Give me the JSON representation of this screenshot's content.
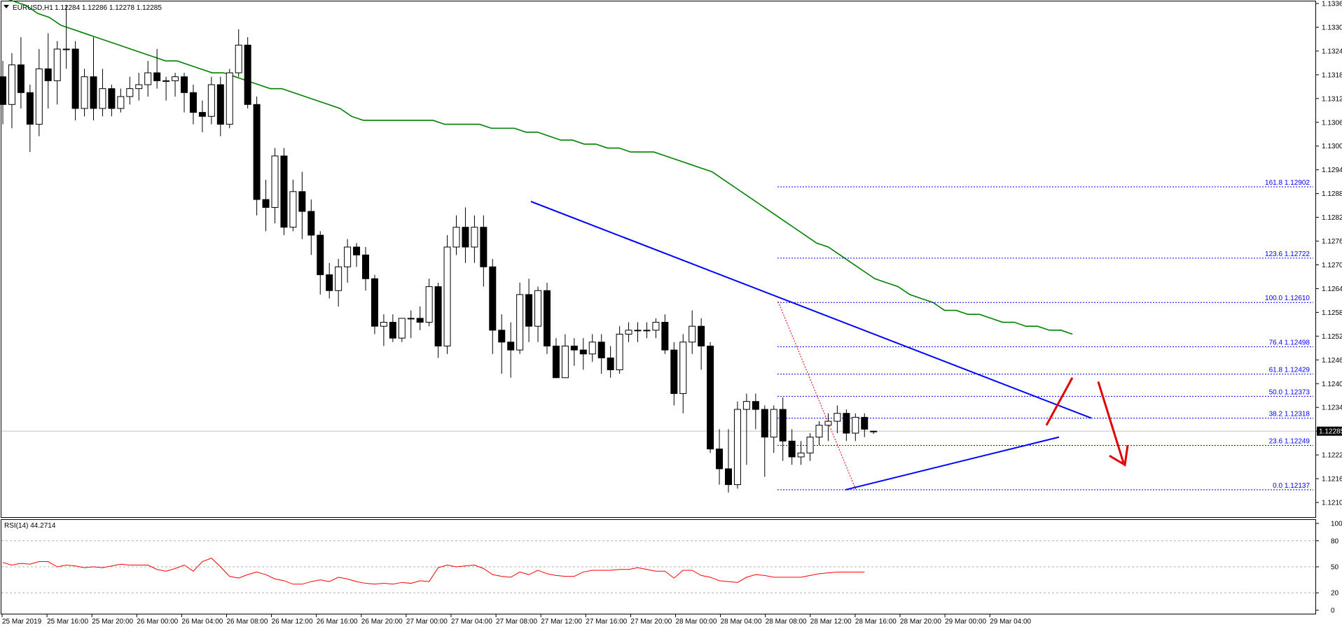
{
  "header": {
    "symbol": "EURUSD,H1",
    "ohlc": "1.12284 1.12286 1.12278 1.12285"
  },
  "rsi_header": "RSI(14) 44.2714",
  "current_price_label": "1.12285",
  "colors": {
    "ma": "#008000",
    "trendline": "#0000ff",
    "fib": "#0000ff",
    "rsi": "#ff0000",
    "arrows": "#e00000",
    "price_line": "#c0c0c0"
  },
  "chart_data": {
    "type": "candlestick",
    "title": "",
    "price_axis": {
      "ylim": [
        1.12075,
        1.13365
      ],
      "ticks": [
        "1.13365",
        "1.13305",
        "1.13245",
        "1.13185",
        "1.13125",
        "1.13065",
        "1.13005",
        "1.12945",
        "1.12885",
        "1.12825",
        "1.12765",
        "1.12705",
        "1.12645",
        "1.12585",
        "1.12525",
        "1.12465",
        "1.12405",
        "1.12345",
        "1.12285",
        "1.12225",
        "1.12165",
        "1.12105"
      ]
    },
    "time_axis": {
      "ticks": [
        "25 Mar 2019",
        "25 Mar 16:00",
        "25 Mar 20:00",
        "26 Mar 00:00",
        "26 Mar 04:00",
        "26 Mar 08:00",
        "26 Mar 12:00",
        "26 Mar 16:00",
        "26 Mar 20:00",
        "27 Mar 00:00",
        "27 Mar 04:00",
        "27 Mar 08:00",
        "27 Mar 12:00",
        "27 Mar 16:00",
        "27 Mar 20:00",
        "28 Mar 00:00",
        "28 Mar 04:00",
        "28 Mar 08:00",
        "28 Mar 12:00",
        "28 Mar 16:00",
        "28 Mar 20:00",
        "29 Mar 00:00",
        "29 Mar 04:00"
      ]
    },
    "candles": [
      [
        1.1318,
        1.1322,
        1.1306,
        1.1311
      ],
      [
        1.1311,
        1.1324,
        1.1305,
        1.1321
      ],
      [
        1.1321,
        1.1328,
        1.131,
        1.1314
      ],
      [
        1.1314,
        1.1316,
        1.1299,
        1.1306
      ],
      [
        1.1306,
        1.1325,
        1.1303,
        1.132
      ],
      [
        1.132,
        1.1329,
        1.131,
        1.1317
      ],
      [
        1.1317,
        1.1327,
        1.1311,
        1.1325
      ],
      [
        1.1325,
        1.1336,
        1.132,
        1.1325
      ],
      [
        1.1325,
        1.1327,
        1.1307,
        1.131
      ],
      [
        1.131,
        1.132,
        1.1308,
        1.1318
      ],
      [
        1.1318,
        1.1328,
        1.1307,
        1.131
      ],
      [
        1.131,
        1.132,
        1.1308,
        1.1315
      ],
      [
        1.1315,
        1.1316,
        1.1308,
        1.131
      ],
      [
        1.131,
        1.1315,
        1.1309,
        1.1313
      ],
      [
        1.1313,
        1.1318,
        1.1311,
        1.1315
      ],
      [
        1.1315,
        1.1319,
        1.1312,
        1.1316
      ],
      [
        1.1316,
        1.1322,
        1.1313,
        1.1319
      ],
      [
        1.1319,
        1.1325,
        1.1315,
        1.1317
      ],
      [
        1.1317,
        1.1318,
        1.1312,
        1.1317
      ],
      [
        1.1317,
        1.1319,
        1.1313,
        1.1318
      ],
      [
        1.1318,
        1.1319,
        1.1309,
        1.1314
      ],
      [
        1.1314,
        1.1316,
        1.1306,
        1.1309
      ],
      [
        1.1309,
        1.1312,
        1.1304,
        1.1308
      ],
      [
        1.1308,
        1.1318,
        1.1306,
        1.1316
      ],
      [
        1.1316,
        1.1318,
        1.1303,
        1.1306
      ],
      [
        1.1306,
        1.132,
        1.1305,
        1.1319
      ],
      [
        1.1319,
        1.133,
        1.1318,
        1.1326
      ],
      [
        1.1326,
        1.1328,
        1.131,
        1.1311
      ],
      [
        1.1311,
        1.1313,
        1.1283,
        1.1287
      ],
      [
        1.1287,
        1.1292,
        1.1279,
        1.1285
      ],
      [
        1.1285,
        1.13,
        1.1281,
        1.1298
      ],
      [
        1.1298,
        1.13,
        1.1278,
        1.128
      ],
      [
        1.128,
        1.1292,
        1.1279,
        1.1289
      ],
      [
        1.1289,
        1.1294,
        1.1277,
        1.1284
      ],
      [
        1.1284,
        1.1287,
        1.1273,
        1.1278
      ],
      [
        1.1278,
        1.1279,
        1.1263,
        1.1268
      ],
      [
        1.1268,
        1.1271,
        1.1262,
        1.1264
      ],
      [
        1.1264,
        1.1272,
        1.126,
        1.127
      ],
      [
        1.127,
        1.1277,
        1.1266,
        1.1275
      ],
      [
        1.1275,
        1.1276,
        1.127,
        1.1273
      ],
      [
        1.1273,
        1.1275,
        1.1264,
        1.1267
      ],
      [
        1.1267,
        1.1268,
        1.1253,
        1.1255
      ],
      [
        1.1255,
        1.1258,
        1.125,
        1.1256
      ],
      [
        1.1256,
        1.1258,
        1.1251,
        1.1252
      ],
      [
        1.1252,
        1.1257,
        1.1251,
        1.1257
      ],
      [
        1.1257,
        1.1259,
        1.1252,
        1.1257
      ],
      [
        1.1257,
        1.126,
        1.1254,
        1.1256
      ],
      [
        1.1256,
        1.1267,
        1.1255,
        1.1265
      ],
      [
        1.1265,
        1.1266,
        1.1247,
        1.125
      ],
      [
        1.125,
        1.1278,
        1.1248,
        1.1275
      ],
      [
        1.1275,
        1.1283,
        1.1273,
        1.128
      ],
      [
        1.128,
        1.1285,
        1.1271,
        1.1275
      ],
      [
        1.1275,
        1.1283,
        1.1271,
        1.128
      ],
      [
        1.128,
        1.1283,
        1.1265,
        1.127
      ],
      [
        1.127,
        1.1272,
        1.1248,
        1.1254
      ],
      [
        1.1254,
        1.1258,
        1.1243,
        1.1251
      ],
      [
        1.1251,
        1.1256,
        1.1242,
        1.1249
      ],
      [
        1.1249,
        1.1266,
        1.1248,
        1.1263
      ],
      [
        1.1263,
        1.1267,
        1.1251,
        1.1255
      ],
      [
        1.1255,
        1.1265,
        1.1251,
        1.1264
      ],
      [
        1.1264,
        1.1266,
        1.1248,
        1.125
      ],
      [
        1.125,
        1.1252,
        1.1242,
        1.1242
      ],
      [
        1.1242,
        1.1253,
        1.1242,
        1.125
      ],
      [
        1.125,
        1.1252,
        1.1245,
        1.1249
      ],
      [
        1.1249,
        1.1252,
        1.1244,
        1.1248
      ],
      [
        1.1248,
        1.1253,
        1.1246,
        1.1251
      ],
      [
        1.1251,
        1.1253,
        1.1243,
        1.1247
      ],
      [
        1.1247,
        1.125,
        1.1242,
        1.1244
      ],
      [
        1.1244,
        1.1255,
        1.1243,
        1.1253
      ],
      [
        1.1253,
        1.1256,
        1.1251,
        1.1254
      ],
      [
        1.1254,
        1.1256,
        1.1251,
        1.1254
      ],
      [
        1.1254,
        1.1256,
        1.1252,
        1.1254
      ],
      [
        1.1254,
        1.1257,
        1.1252,
        1.1256
      ],
      [
        1.1256,
        1.1258,
        1.1248,
        1.1249
      ],
      [
        1.1249,
        1.1251,
        1.1235,
        1.1238
      ],
      [
        1.1238,
        1.1253,
        1.1233,
        1.1251
      ],
      [
        1.1251,
        1.1259,
        1.1248,
        1.1255
      ],
      [
        1.1255,
        1.1257,
        1.1244,
        1.125
      ],
      [
        1.125,
        1.1251,
        1.1223,
        1.1224
      ],
      [
        1.1224,
        1.1229,
        1.1215,
        1.1219
      ],
      [
        1.1219,
        1.1229,
        1.1213,
        1.1215
      ],
      [
        1.1215,
        1.1236,
        1.1214,
        1.1234
      ],
      [
        1.1234,
        1.1238,
        1.122,
        1.1236
      ],
      [
        1.1236,
        1.1238,
        1.1229,
        1.1234
      ],
      [
        1.1234,
        1.1235,
        1.1217,
        1.1227
      ],
      [
        1.1227,
        1.1235,
        1.1223,
        1.1234
      ],
      [
        1.1234,
        1.1237,
        1.1221,
        1.1226
      ],
      [
        1.1226,
        1.1229,
        1.122,
        1.1222
      ],
      [
        1.1222,
        1.1226,
        1.122,
        1.1223
      ],
      [
        1.1223,
        1.1228,
        1.1221,
        1.1227
      ],
      [
        1.1227,
        1.1231,
        1.1225,
        1.123
      ],
      [
        1.123,
        1.1233,
        1.1226,
        1.1231
      ],
      [
        1.1231,
        1.1235,
        1.1228,
        1.1233
      ],
      [
        1.1233,
        1.1234,
        1.1226,
        1.1228
      ],
      [
        1.1228,
        1.1233,
        1.1226,
        1.1232
      ],
      [
        1.1232,
        1.1233,
        1.1227,
        1.1229
      ],
      [
        1.12284,
        1.12286,
        1.12278,
        1.12285
      ]
    ],
    "ma_series": [
      1.1338,
      1.1337,
      1.1336,
      1.1334,
      1.1333,
      1.1331,
      1.133,
      1.1329,
      1.1328,
      1.1327,
      1.1326,
      1.1325,
      1.1324,
      1.1323,
      1.1322,
      1.1322,
      1.1321,
      1.132,
      1.1319,
      1.1319,
      1.1318,
      1.1317,
      1.1316,
      1.1315,
      1.1315,
      1.1314,
      1.1313,
      1.1312,
      1.1311,
      1.131,
      1.1308,
      1.1307,
      1.1307,
      1.1307,
      1.1307,
      1.1307,
      1.1307,
      1.1307,
      1.1306,
      1.1306,
      1.1306,
      1.1306,
      1.1305,
      1.1305,
      1.1305,
      1.1304,
      1.1304,
      1.1303,
      1.1302,
      1.1302,
      1.1301,
      1.1301,
      1.13,
      1.13,
      1.1299,
      1.1299,
      1.1299,
      1.1298,
      1.1297,
      1.1296,
      1.1295,
      1.1294,
      1.1292,
      1.129,
      1.1288,
      1.1286,
      1.1284,
      1.1282,
      1.128,
      1.1278,
      1.1276,
      1.1275,
      1.1273,
      1.1271,
      1.1269,
      1.1267,
      1.1266,
      1.1265,
      1.1263,
      1.1262,
      1.1261,
      1.1259,
      1.1259,
      1.1258,
      1.1258,
      1.1257,
      1.1256,
      1.1256,
      1.1255,
      1.1255,
      1.1254,
      1.1254,
      1.1253
    ],
    "rsi": {
      "name": "RSI(14)",
      "value_label": "44.2714",
      "levels": [
        20,
        50,
        80
      ],
      "ylim": [
        0,
        100
      ],
      "ticks": [
        "100",
        "80",
        "50",
        "20",
        "0"
      ],
      "values": [
        55,
        52,
        54,
        53,
        56,
        56,
        50,
        52,
        51,
        49,
        50,
        49,
        51,
        53,
        52,
        52,
        52,
        47,
        45,
        48,
        52,
        45,
        56,
        60,
        50,
        39,
        37,
        41,
        44,
        41,
        36,
        34,
        30,
        30,
        33,
        35,
        33,
        38,
        36,
        33,
        31,
        30,
        31,
        30,
        32,
        31,
        34,
        33,
        49,
        52,
        50,
        51,
        52,
        48,
        41,
        39,
        38,
        44,
        41,
        46,
        42,
        40,
        39,
        39,
        44,
        46,
        46,
        46,
        47,
        47,
        49,
        47,
        45,
        45,
        37,
        46,
        46,
        40,
        38,
        34,
        33,
        32,
        38,
        41,
        40,
        38,
        38,
        38,
        38,
        40,
        42,
        43,
        44,
        44,
        44,
        44
      ]
    },
    "annotations": {
      "fibonacci": [
        {
          "label": "161.8 1.12902",
          "value": 1.12902
        },
        {
          "label": "123.6 1.12722",
          "value": 1.12722
        },
        {
          "label": "100.0 1.12610",
          "value": 1.1261
        },
        {
          "label": "76.4 1.12498",
          "value": 1.12498
        },
        {
          "label": "61.8 1.12429",
          "value": 1.12429
        },
        {
          "label": "50.0 1.12373",
          "value": 1.12373
        },
        {
          "label": "38.2 1.12318",
          "value": 1.12318
        },
        {
          "label": "23.6 1.12249",
          "value": 1.12249
        },
        {
          "label": "0.0 1.12137",
          "value": 1.12137
        }
      ]
    }
  }
}
